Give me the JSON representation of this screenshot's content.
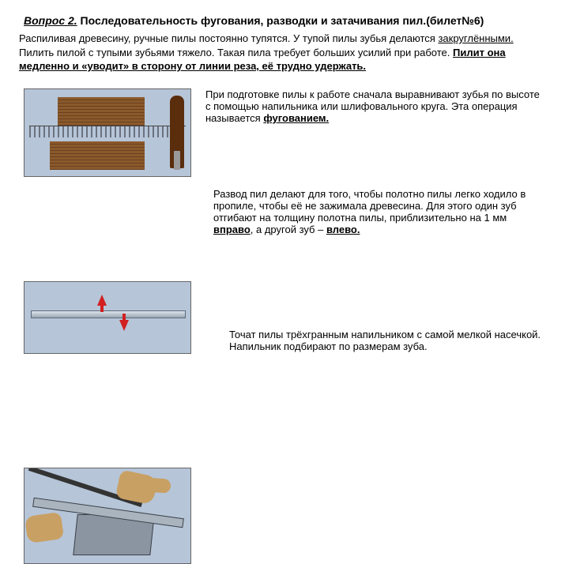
{
  "title": {
    "lead": "Вопрос 2.",
    "rest": " Последовательность фугования, разводки и затачивания пил.(билет№6)"
  },
  "intro": {
    "p1": "Распиливая древесину, ручные пилы постоянно тупятся. У тупой пилы зубья делаются ",
    "u1": "закруглёнными.",
    "p2": " Пилить пилой с тупыми зубьями тяжело. Такая пила требует больших усилий при работе. ",
    "u2": "Пилит она медленно и «уводит» в сторону от линии реза, её трудно удержать."
  },
  "section1": {
    "t1": "При подготовке пилы к работе сначала  выравнивают зубья по высоте с помощью   напильника или шлифовального круга. Эта операция называется ",
    "u": "фугованием."
  },
  "section2": {
    "t1": "Развод пил делают для того, чтобы полотно пилы легко ходило в пропиле, чтобы её не зажимала древесина. Для этого один зуб отгибают на толщину полотна пилы, приблизительно на 1 мм ",
    "b1": "вправо",
    "t2": ", а другой зуб – ",
    "b2": "влево."
  },
  "section3": {
    "t": "Точат пилы трёхгранным напильником с самой мелкой насечкой. Напильник подбирают по размерам зуба."
  },
  "colors": {
    "bg": "#ffffff",
    "figure_bg": "#b6c5d8",
    "wood": "#8b5a2b",
    "arrow": "#d12020",
    "hand": "#c9a063",
    "metal": "#8b95a1"
  }
}
